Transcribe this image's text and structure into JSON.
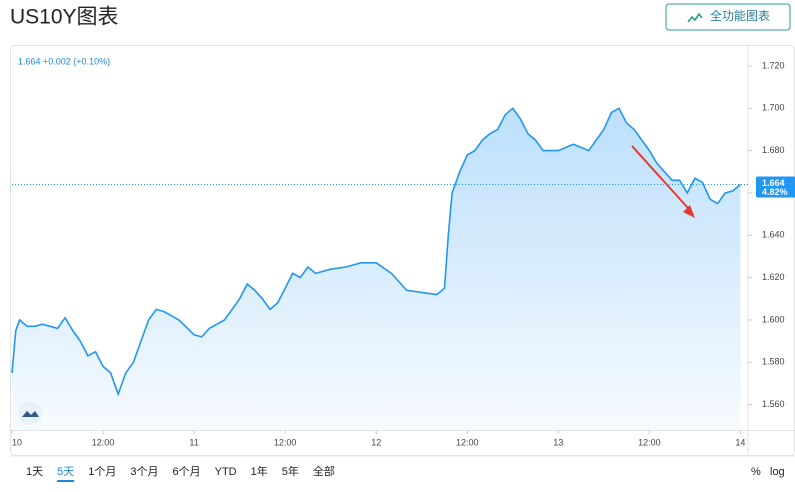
{
  "chart_data": {
    "type": "area",
    "title": "US10Y图表",
    "button": "全功能图表",
    "quote": "1.664 +0.002 (+0.10%)",
    "price_line": 1.664,
    "price_change_pct": "4.82%",
    "color": "#2196f3",
    "x": [
      0,
      0.5,
      1,
      2,
      3,
      4,
      6,
      7,
      8,
      9,
      10,
      11,
      12,
      13,
      14,
      15,
      16,
      17,
      18,
      19,
      20,
      21,
      22,
      24,
      25,
      26,
      27,
      28,
      30,
      31,
      32,
      33,
      34,
      35,
      36,
      37,
      38,
      39,
      40,
      42,
      44,
      46,
      48,
      50,
      52,
      54,
      56,
      57,
      57.5,
      58,
      59,
      60,
      61,
      62,
      63,
      64,
      65,
      66,
      67,
      68,
      69,
      70,
      72,
      74,
      76,
      78,
      79,
      80,
      81,
      82,
      83,
      84,
      85,
      86,
      87,
      88,
      89,
      90,
      91,
      92,
      93,
      94,
      95,
      96
    ],
    "series": [
      {
        "name": "US10Y",
        "values": [
          1.575,
          1.595,
          1.6,
          1.597,
          1.597,
          1.598,
          1.596,
          1.601,
          1.595,
          1.59,
          1.583,
          1.585,
          1.578,
          1.575,
          1.565,
          1.575,
          1.58,
          1.59,
          1.6,
          1.605,
          1.604,
          1.602,
          1.6,
          1.593,
          1.592,
          1.596,
          1.598,
          1.6,
          1.61,
          1.617,
          1.614,
          1.61,
          1.605,
          1.608,
          1.615,
          1.622,
          1.62,
          1.625,
          1.622,
          1.624,
          1.625,
          1.627,
          1.627,
          1.622,
          1.614,
          1.613,
          1.612,
          1.615,
          1.64,
          1.66,
          1.67,
          1.678,
          1.68,
          1.685,
          1.688,
          1.69,
          1.697,
          1.7,
          1.695,
          1.688,
          1.685,
          1.68,
          1.68,
          1.683,
          1.68,
          1.69,
          1.698,
          1.7,
          1.693,
          1.69,
          1.685,
          1.68,
          1.674,
          1.67,
          1.666,
          1.666,
          1.66,
          1.667,
          1.665,
          1.657,
          1.655,
          1.66,
          1.661,
          1.664
        ]
      }
    ],
    "xlim": [
      0,
      97
    ],
    "xticks": [
      {
        "value": 0,
        "label": "10"
      },
      {
        "value": 12,
        "label": "12:00"
      },
      {
        "value": 24,
        "label": "11"
      },
      {
        "value": 36,
        "label": "12:00"
      },
      {
        "value": 48,
        "label": "12"
      },
      {
        "value": 60,
        "label": "12:00"
      },
      {
        "value": 72,
        "label": "13"
      },
      {
        "value": 84,
        "label": "12:00"
      },
      {
        "value": 96,
        "label": "14"
      }
    ],
    "ylim": [
      1.548,
      1.7285
    ],
    "yticks": [
      {
        "value": 1.56,
        "label": "1.560"
      },
      {
        "value": 1.58,
        "label": "1.580"
      },
      {
        "value": 1.6,
        "label": "1.600"
      },
      {
        "value": 1.62,
        "label": "1.620"
      },
      {
        "value": 1.64,
        "label": "1.640"
      },
      {
        "value": 1.66,
        "label": "1.660"
      },
      {
        "value": 1.68,
        "label": "1.680"
      },
      {
        "value": 1.7,
        "label": "1.700"
      },
      {
        "value": 1.72,
        "label": "1.720"
      }
    ],
    "ranges": [
      "1天",
      "5天",
      "1个月",
      "3个月",
      "6个月",
      "YTD",
      "1年",
      "5年",
      "全部"
    ],
    "selected_range_index": 1,
    "scale_options": [
      "%",
      "log"
    ]
  }
}
